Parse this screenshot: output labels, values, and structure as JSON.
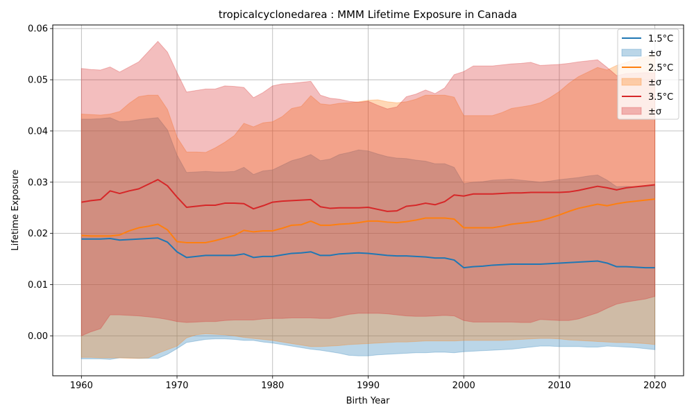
{
  "chart_data": {
    "type": "line",
    "title": "tropicalcyclonedarea : MMM Lifetime Exposure in Canada",
    "xlabel": "Birth Year",
    "ylabel": "Lifetime Exposure",
    "xlim": [
      1957,
      2023
    ],
    "ylim": [
      -0.0078,
      0.0607
    ],
    "xticks": [
      1960,
      1970,
      1980,
      1990,
      2000,
      2010,
      2020
    ],
    "yticks": [
      0.0,
      0.01,
      0.02,
      0.03,
      0.04,
      0.05,
      0.06
    ],
    "ytick_labels": [
      "0.00",
      "0.01",
      "0.02",
      "0.03",
      "0.04",
      "0.05",
      "0.06"
    ],
    "grid": true,
    "legend_position": "top-right",
    "band_label": "±σ",
    "x": [
      1960,
      1961,
      1962,
      1963,
      1964,
      1965,
      1966,
      1967,
      1968,
      1969,
      1970,
      1971,
      1972,
      1973,
      1974,
      1975,
      1976,
      1977,
      1978,
      1979,
      1980,
      1981,
      1982,
      1983,
      1984,
      1985,
      1986,
      1987,
      1988,
      1989,
      1990,
      1991,
      1992,
      1993,
      1994,
      1995,
      1996,
      1997,
      1998,
      1999,
      2000,
      2001,
      2002,
      2003,
      2004,
      2005,
      2006,
      2007,
      2008,
      2009,
      2010,
      2011,
      2012,
      2013,
      2014,
      2015,
      2016,
      2017,
      2018,
      2019,
      2020
    ],
    "series": [
      {
        "name": "1.5°C",
        "color": "#1f77b4",
        "values": [
          0.0189,
          0.0189,
          0.0189,
          0.019,
          0.0187,
          0.0188,
          0.0189,
          0.019,
          0.0191,
          0.0183,
          0.0164,
          0.0153,
          0.0155,
          0.0157,
          0.0157,
          0.0157,
          0.0157,
          0.016,
          0.0153,
          0.0155,
          0.0155,
          0.0158,
          0.0161,
          0.0162,
          0.0164,
          0.0157,
          0.0157,
          0.016,
          0.0161,
          0.0162,
          0.0161,
          0.0159,
          0.0157,
          0.0156,
          0.0156,
          0.0155,
          0.0154,
          0.0152,
          0.0152,
          0.0148,
          0.0133,
          0.0135,
          0.0136,
          0.0138,
          0.0139,
          0.014,
          0.014,
          0.014,
          0.014,
          0.0141,
          0.0142,
          0.0143,
          0.0144,
          0.0145,
          0.0146,
          0.0142,
          0.0135,
          0.0135,
          0.0134,
          0.0133,
          0.0133
        ],
        "lower": [
          -0.0045,
          -0.0045,
          -0.0045,
          -0.0046,
          -0.0043,
          -0.0043,
          -0.0044,
          -0.0044,
          -0.0044,
          -0.0036,
          -0.0025,
          -0.0013,
          -0.001,
          -0.0007,
          -0.0006,
          -0.0006,
          -0.0007,
          -0.0009,
          -0.0009,
          -0.0012,
          -0.0014,
          -0.0017,
          -0.002,
          -0.0023,
          -0.0026,
          -0.0028,
          -0.0031,
          -0.0034,
          -0.0038,
          -0.0039,
          -0.0039,
          -0.0037,
          -0.0036,
          -0.0035,
          -0.0034,
          -0.0033,
          -0.0033,
          -0.0032,
          -0.0032,
          -0.0033,
          -0.0031,
          -0.003,
          -0.0029,
          -0.0028,
          -0.0027,
          -0.0026,
          -0.0024,
          -0.0022,
          -0.002,
          -0.002,
          -0.0021,
          -0.0021,
          -0.0021,
          -0.0022,
          -0.0022,
          -0.002,
          -0.0021,
          -0.0022,
          -0.0023,
          -0.0025,
          -0.0027
        ],
        "upper": [
          0.0423,
          0.0423,
          0.0424,
          0.0426,
          0.0418,
          0.0419,
          0.0422,
          0.0424,
          0.0426,
          0.0402,
          0.0353,
          0.0319,
          0.032,
          0.0321,
          0.032,
          0.032,
          0.0321,
          0.0329,
          0.0315,
          0.0322,
          0.0324,
          0.0333,
          0.0342,
          0.0347,
          0.0354,
          0.0342,
          0.0345,
          0.0354,
          0.0358,
          0.0363,
          0.0361,
          0.0355,
          0.035,
          0.0347,
          0.0346,
          0.0343,
          0.0341,
          0.0336,
          0.0336,
          0.0329,
          0.0297,
          0.03,
          0.0301,
          0.0304,
          0.0305,
          0.0306,
          0.0304,
          0.0302,
          0.03,
          0.0302,
          0.0305,
          0.0307,
          0.0309,
          0.0312,
          0.0314,
          0.0304,
          0.0291,
          0.0292,
          0.0291,
          0.0291,
          0.0293
        ]
      },
      {
        "name": "2.5°C",
        "color": "#ff7f0e",
        "values": [
          0.0196,
          0.0195,
          0.0195,
          0.0195,
          0.0197,
          0.0205,
          0.0211,
          0.0214,
          0.0218,
          0.0207,
          0.0184,
          0.0182,
          0.0182,
          0.0182,
          0.0186,
          0.0191,
          0.0196,
          0.0206,
          0.0203,
          0.0205,
          0.0205,
          0.021,
          0.0216,
          0.0217,
          0.0224,
          0.0216,
          0.0216,
          0.0218,
          0.0219,
          0.0221,
          0.0224,
          0.0224,
          0.0222,
          0.0221,
          0.0223,
          0.0226,
          0.023,
          0.023,
          0.023,
          0.0228,
          0.0211,
          0.0211,
          0.0211,
          0.0211,
          0.0214,
          0.0218,
          0.022,
          0.0222,
          0.0225,
          0.023,
          0.0236,
          0.0243,
          0.0249,
          0.0253,
          0.0257,
          0.0254,
          0.0258,
          0.0261,
          0.0263,
          0.0265,
          0.0267
        ],
        "lower": [
          -0.0042,
          -0.0042,
          -0.0043,
          -0.0043,
          -0.0043,
          -0.0044,
          -0.0044,
          -0.0043,
          -0.0034,
          -0.0027,
          -0.002,
          -0.0004,
          0.0002,
          0.0004,
          0.0003,
          0.0002,
          0.0,
          -0.0003,
          -0.0005,
          -0.0007,
          -0.0009,
          -0.0012,
          -0.0015,
          -0.0018,
          -0.0021,
          -0.0021,
          -0.002,
          -0.0019,
          -0.0017,
          -0.0016,
          -0.0015,
          -0.0014,
          -0.0013,
          -0.0012,
          -0.0012,
          -0.0011,
          -0.001,
          -0.001,
          -0.001,
          -0.001,
          -0.0009,
          -0.0009,
          -0.0009,
          -0.0009,
          -0.0009,
          -0.0008,
          -0.0007,
          -0.0006,
          -0.0005,
          -0.0005,
          -0.0006,
          -0.0008,
          -0.0009,
          -0.001,
          -0.0011,
          -0.0012,
          -0.0013,
          -0.0013,
          -0.0014,
          -0.0015,
          -0.0017
        ],
        "upper": [
          0.0433,
          0.0432,
          0.0431,
          0.0433,
          0.0438,
          0.0454,
          0.0467,
          0.047,
          0.047,
          0.0442,
          0.0388,
          0.0359,
          0.0359,
          0.0358,
          0.0367,
          0.0378,
          0.0391,
          0.0415,
          0.0408,
          0.0416,
          0.0418,
          0.0428,
          0.0444,
          0.0448,
          0.0469,
          0.0453,
          0.0451,
          0.0454,
          0.0455,
          0.0457,
          0.046,
          0.0461,
          0.0457,
          0.0455,
          0.0457,
          0.0462,
          0.047,
          0.047,
          0.047,
          0.0466,
          0.043,
          0.043,
          0.043,
          0.043,
          0.0436,
          0.0444,
          0.0447,
          0.045,
          0.0455,
          0.0465,
          0.0477,
          0.0493,
          0.0506,
          0.0515,
          0.0524,
          0.0519,
          0.0528,
          0.0534,
          0.054,
          0.0545,
          0.0551
        ]
      },
      {
        "name": "3.5°C",
        "color": "#d62728",
        "values": [
          0.0261,
          0.0264,
          0.0266,
          0.0283,
          0.0278,
          0.0283,
          0.0287,
          0.0296,
          0.0305,
          0.0293,
          0.0271,
          0.0251,
          0.0253,
          0.0255,
          0.0255,
          0.0259,
          0.0259,
          0.0258,
          0.0248,
          0.0254,
          0.0261,
          0.0263,
          0.0264,
          0.0265,
          0.0266,
          0.0252,
          0.0249,
          0.025,
          0.025,
          0.025,
          0.0251,
          0.0247,
          0.0243,
          0.0244,
          0.0253,
          0.0255,
          0.0259,
          0.0256,
          0.0262,
          0.0275,
          0.0273,
          0.0277,
          0.0277,
          0.0277,
          0.0278,
          0.0279,
          0.0279,
          0.028,
          0.028,
          0.028,
          0.028,
          0.0281,
          0.0284,
          0.0288,
          0.0292,
          0.0289,
          0.0285,
          0.0289,
          0.0291,
          0.0293,
          0.0295
        ],
        "lower": [
          0.0,
          0.0008,
          0.0014,
          0.0041,
          0.0041,
          0.004,
          0.0039,
          0.0037,
          0.0035,
          0.0032,
          0.0028,
          0.0026,
          0.0027,
          0.0028,
          0.0028,
          0.003,
          0.0031,
          0.0031,
          0.0031,
          0.0033,
          0.0034,
          0.0034,
          0.0035,
          0.0035,
          0.0035,
          0.0034,
          0.0034,
          0.0038,
          0.0042,
          0.0044,
          0.0044,
          0.0044,
          0.0043,
          0.0041,
          0.0039,
          0.0038,
          0.0038,
          0.0039,
          0.004,
          0.0039,
          0.003,
          0.0027,
          0.0027,
          0.0027,
          0.0027,
          0.0027,
          0.0026,
          0.0026,
          0.0032,
          0.0031,
          0.003,
          0.003,
          0.0033,
          0.0039,
          0.0045,
          0.0054,
          0.0062,
          0.0066,
          0.0069,
          0.0072,
          0.0077
        ],
        "upper": [
          0.0522,
          0.052,
          0.0519,
          0.0525,
          0.0515,
          0.0525,
          0.0535,
          0.0555,
          0.0575,
          0.0554,
          0.0514,
          0.0476,
          0.0479,
          0.0482,
          0.0482,
          0.0488,
          0.0487,
          0.0485,
          0.0465,
          0.0475,
          0.0488,
          0.0492,
          0.0493,
          0.0495,
          0.0497,
          0.047,
          0.0464,
          0.0462,
          0.0458,
          0.0456,
          0.0458,
          0.045,
          0.0443,
          0.0447,
          0.0467,
          0.0472,
          0.048,
          0.0473,
          0.0484,
          0.051,
          0.0516,
          0.0527,
          0.0527,
          0.0527,
          0.0529,
          0.0531,
          0.0532,
          0.0534,
          0.0528,
          0.0529,
          0.053,
          0.0532,
          0.0535,
          0.0537,
          0.0539,
          0.0524,
          0.0508,
          0.0512,
          0.0513,
          0.0514,
          0.0513
        ]
      }
    ]
  }
}
